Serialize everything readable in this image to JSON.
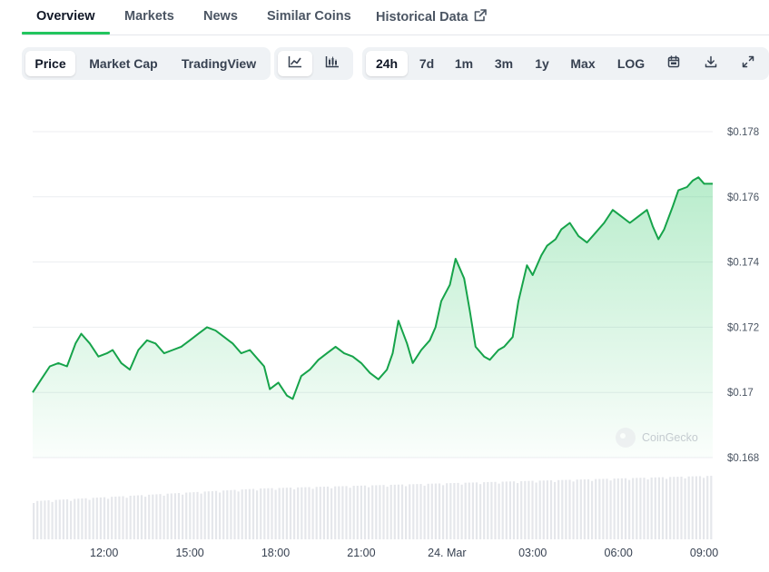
{
  "nav": {
    "tabs": [
      {
        "label": "Overview",
        "active": true
      },
      {
        "label": "Markets"
      },
      {
        "label": "News"
      },
      {
        "label": "Similar Coins"
      },
      {
        "label": "Historical Data",
        "icon": "external-link-icon"
      }
    ]
  },
  "toolbar": {
    "chart_types": [
      "Price",
      "Market Cap",
      "TradingView"
    ],
    "selected_chart_type": "Price",
    "view_icons": [
      "line-chart-icon",
      "candlestick-chart-icon"
    ],
    "ranges": [
      "24h",
      "7d",
      "1m",
      "3m",
      "1y",
      "Max",
      "LOG"
    ],
    "selected_range": "24h",
    "action_icons": [
      "calendar-icon",
      "download-icon",
      "fullscreen-icon"
    ]
  },
  "watermark": "CoinGecko",
  "colors": {
    "line": "#16a34a",
    "accent": "#22c55e",
    "volume": "#e5e7eb"
  },
  "chart_data": {
    "type": "area",
    "x_ticks": [
      "12:00",
      "15:00",
      "18:00",
      "21:00",
      "24. Mar",
      "03:00",
      "06:00",
      "09:00"
    ],
    "y_ticks": [
      "$0.168",
      "$0.17",
      "$0.172",
      "$0.174",
      "$0.176",
      "$0.178"
    ],
    "ylim": [
      0.168,
      0.178
    ],
    "x_range_hours": [
      9.5,
      33.3
    ],
    "grid": true,
    "series": [
      {
        "values": [
          [
            9.5,
            0.17
          ],
          [
            9.8,
            0.1704
          ],
          [
            10.1,
            0.1708
          ],
          [
            10.4,
            0.1709
          ],
          [
            10.7,
            0.1708
          ],
          [
            11.0,
            0.1715
          ],
          [
            11.2,
            0.1718
          ],
          [
            11.5,
            0.1715
          ],
          [
            11.8,
            0.1711
          ],
          [
            12.1,
            0.1712
          ],
          [
            12.3,
            0.1713
          ],
          [
            12.6,
            0.1709
          ],
          [
            12.9,
            0.1707
          ],
          [
            13.2,
            0.1713
          ],
          [
            13.5,
            0.1716
          ],
          [
            13.8,
            0.1715
          ],
          [
            14.1,
            0.1712
          ],
          [
            14.4,
            0.1713
          ],
          [
            14.7,
            0.1714
          ],
          [
            15.0,
            0.1716
          ],
          [
            15.3,
            0.1718
          ],
          [
            15.6,
            0.172
          ],
          [
            15.9,
            0.1719
          ],
          [
            16.2,
            0.1717
          ],
          [
            16.5,
            0.1715
          ],
          [
            16.8,
            0.1712
          ],
          [
            17.1,
            0.1713
          ],
          [
            17.4,
            0.171
          ],
          [
            17.6,
            0.1708
          ],
          [
            17.8,
            0.1701
          ],
          [
            18.1,
            0.1703
          ],
          [
            18.4,
            0.1699
          ],
          [
            18.6,
            0.1698
          ],
          [
            18.9,
            0.1705
          ],
          [
            19.2,
            0.1707
          ],
          [
            19.5,
            0.171
          ],
          [
            19.8,
            0.1712
          ],
          [
            20.1,
            0.1714
          ],
          [
            20.4,
            0.1712
          ],
          [
            20.7,
            0.1711
          ],
          [
            21.0,
            0.1709
          ],
          [
            21.3,
            0.1706
          ],
          [
            21.6,
            0.1704
          ],
          [
            21.9,
            0.1707
          ],
          [
            22.1,
            0.1712
          ],
          [
            22.3,
            0.1722
          ],
          [
            22.6,
            0.1715
          ],
          [
            22.8,
            0.1709
          ],
          [
            23.1,
            0.1713
          ],
          [
            23.4,
            0.1716
          ],
          [
            23.6,
            0.172
          ],
          [
            23.8,
            0.1728
          ],
          [
            24.1,
            0.1733
          ],
          [
            24.3,
            0.1741
          ],
          [
            24.6,
            0.1735
          ],
          [
            24.8,
            0.1725
          ],
          [
            25.0,
            0.1714
          ],
          [
            25.3,
            0.1711
          ],
          [
            25.5,
            0.171
          ],
          [
            25.8,
            0.1713
          ],
          [
            26.0,
            0.1714
          ],
          [
            26.3,
            0.1717
          ],
          [
            26.5,
            0.1728
          ],
          [
            26.8,
            0.1739
          ],
          [
            27.0,
            0.1736
          ],
          [
            27.3,
            0.1742
          ],
          [
            27.5,
            0.1745
          ],
          [
            27.8,
            0.1747
          ],
          [
            28.0,
            0.175
          ],
          [
            28.3,
            0.1752
          ],
          [
            28.6,
            0.1748
          ],
          [
            28.9,
            0.1746
          ],
          [
            29.2,
            0.1749
          ],
          [
            29.5,
            0.1752
          ],
          [
            29.8,
            0.1756
          ],
          [
            30.1,
            0.1754
          ],
          [
            30.4,
            0.1752
          ],
          [
            30.7,
            0.1754
          ],
          [
            31.0,
            0.1756
          ],
          [
            31.2,
            0.1751
          ],
          [
            31.4,
            0.1747
          ],
          [
            31.6,
            0.175
          ],
          [
            31.9,
            0.1757
          ],
          [
            32.1,
            0.1762
          ],
          [
            32.4,
            0.1763
          ],
          [
            32.6,
            0.1765
          ],
          [
            32.8,
            0.1766
          ],
          [
            33.0,
            0.1764
          ],
          [
            33.3,
            0.1764
          ]
        ]
      }
    ],
    "volume_trend": [
      0.6,
      0.8,
      0.9,
      1.0
    ]
  }
}
